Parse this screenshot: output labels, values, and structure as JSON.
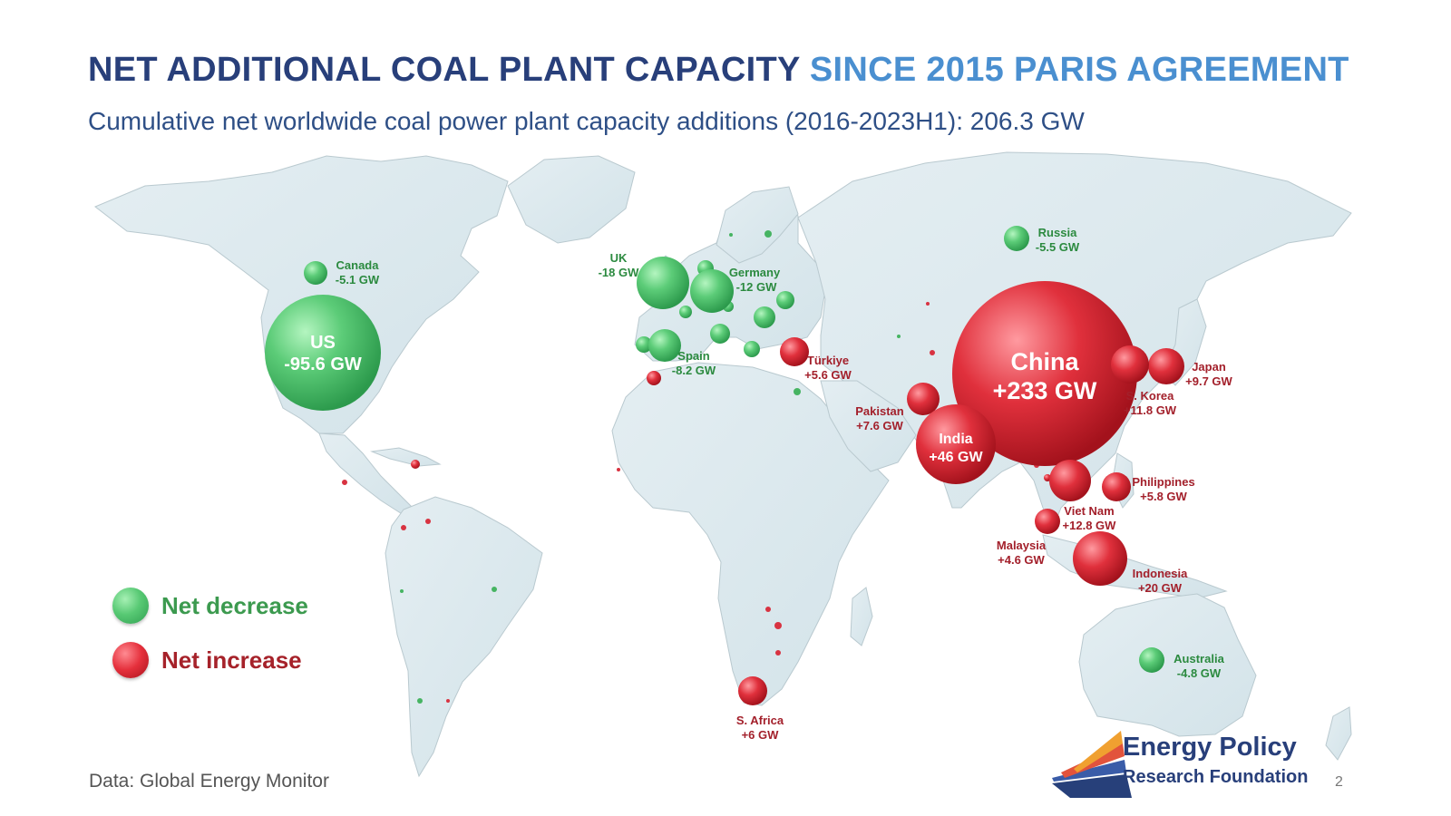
{
  "title": {
    "part1": "NET ADDITIONAL COAL PLANT CAPACITY",
    "part2": "SINCE 2015 PARIS AGREEMENT"
  },
  "subtitle": "Cumulative net worldwide coal power plant capacity additions (2016-2023H1): 206.3 GW",
  "legend": {
    "decrease": "Net decrease",
    "increase": "Net increase"
  },
  "source": "Data: Global Energy Monitor",
  "logo": {
    "line1": "Energy Policy",
    "line2": "Research Foundation"
  },
  "page_number": "2",
  "colors": {
    "decrease": "#4cbf6a",
    "increase": "#dd2b37",
    "title_dark": "#283f7a",
    "title_light": "#4a8fd0"
  },
  "countries": [
    {
      "id": "us",
      "name": "US",
      "value": "-95.6 GW",
      "gw": -95.6
    },
    {
      "id": "canada",
      "name": "Canada",
      "value": "-5.1 GW",
      "gw": -5.1
    },
    {
      "id": "uk",
      "name": "UK",
      "value": "-18 GW",
      "gw": -18
    },
    {
      "id": "germany",
      "name": "Germany",
      "value": "-12 GW",
      "gw": -12
    },
    {
      "id": "spain",
      "name": "Spain",
      "value": "-8.2 GW",
      "gw": -8.2
    },
    {
      "id": "russia",
      "name": "Russia",
      "value": "-5.5 GW",
      "gw": -5.5
    },
    {
      "id": "turkiye",
      "name": "Türkiye",
      "value": "+5.6 GW",
      "gw": 5.6
    },
    {
      "id": "pakistan",
      "name": "Pakistan",
      "value": "+7.6 GW",
      "gw": 7.6
    },
    {
      "id": "india",
      "name": "India",
      "value": "+46 GW",
      "gw": 46
    },
    {
      "id": "china",
      "name": "China",
      "value": "+233 GW",
      "gw": 233
    },
    {
      "id": "japan",
      "name": "Japan",
      "value": "+9.7 GW",
      "gw": 9.7
    },
    {
      "id": "skorea",
      "name": "S. Korea",
      "value": "+11.8 GW",
      "gw": 11.8
    },
    {
      "id": "philippines",
      "name": "Philippines",
      "value": "+5.8 GW",
      "gw": 5.8
    },
    {
      "id": "vietnam",
      "name": "Viet Nam",
      "value": "+12.8 GW",
      "gw": 12.8
    },
    {
      "id": "malaysia",
      "name": "Malaysia",
      "value": "+4.6 GW",
      "gw": 4.6
    },
    {
      "id": "indonesia",
      "name": "Indonesia",
      "value": "+20 GW",
      "gw": 20
    },
    {
      "id": "australia",
      "name": "Australia",
      "value": "-4.8 GW",
      "gw": -4.8
    },
    {
      "id": "safrica",
      "name": "S. Africa",
      "value": "+6 GW",
      "gw": 6
    }
  ]
}
